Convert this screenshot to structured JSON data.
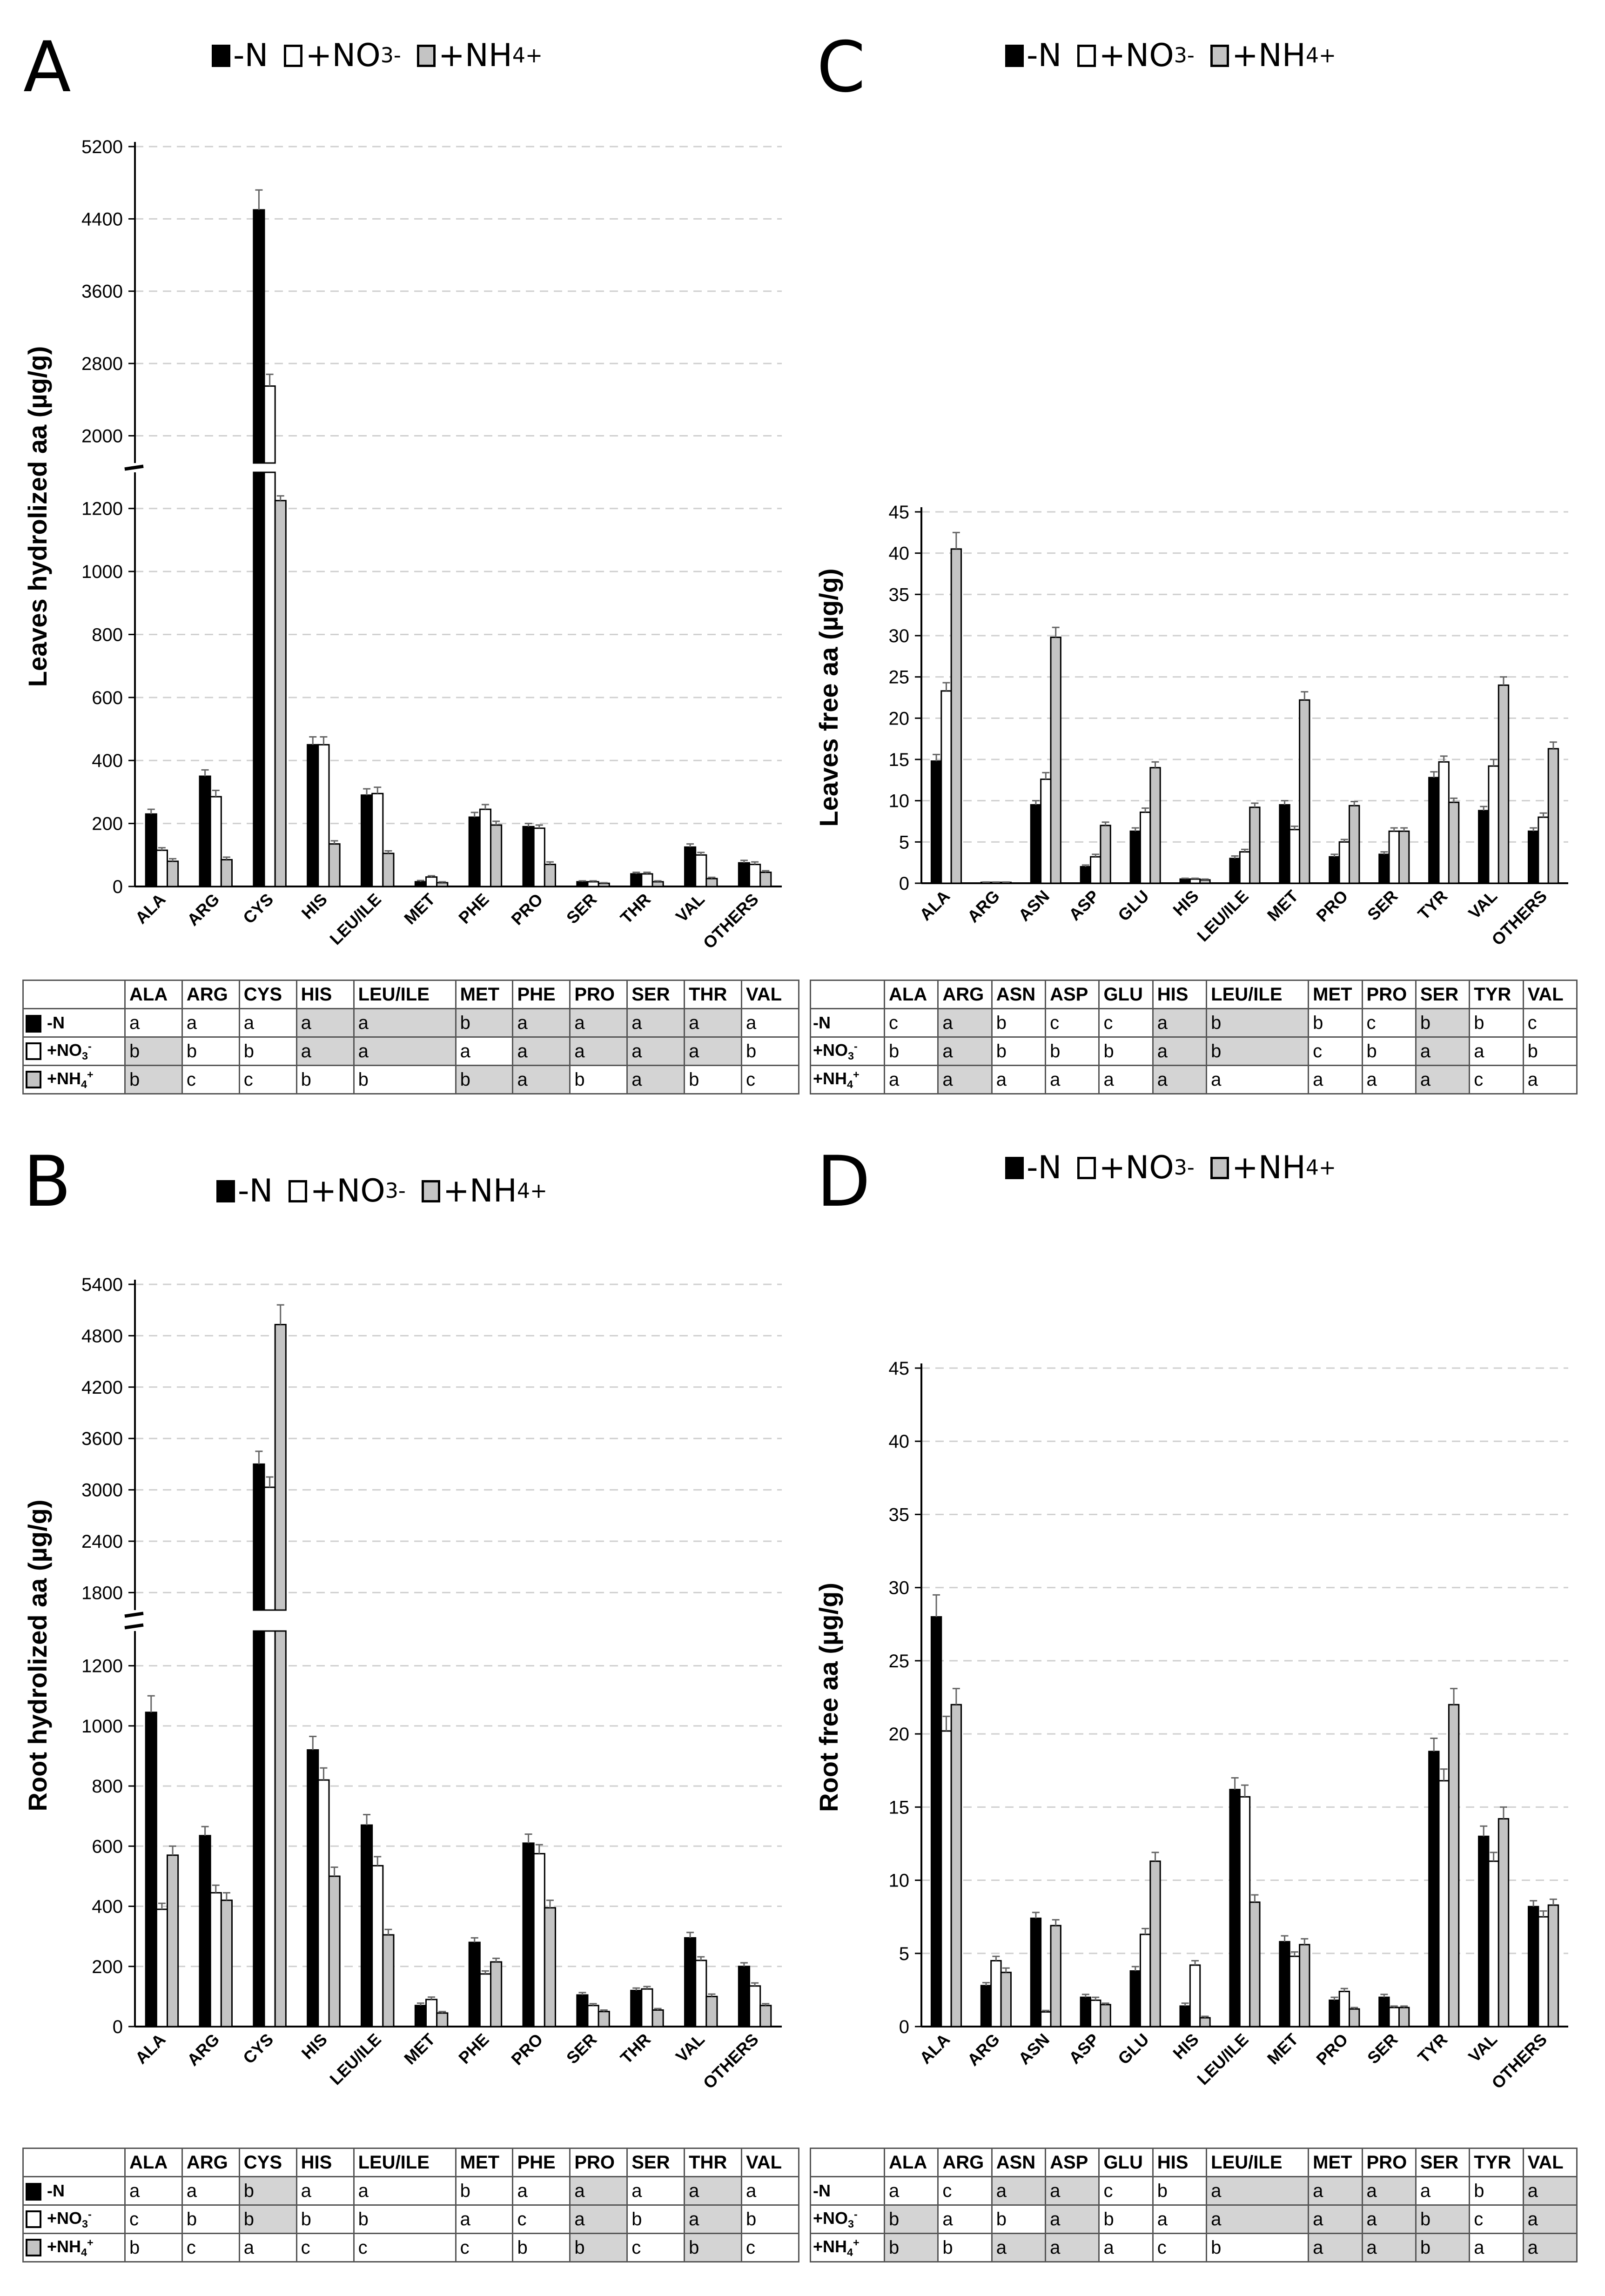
{
  "legend": {
    "minus_n": "-N",
    "no3_base": "+NO",
    "no3_sub": "3",
    "no3_sup": "-",
    "nh4_base": "+NH",
    "nh4_sub": "4",
    "nh4_sup": "+"
  },
  "colors": {
    "minus_n": "#000000",
    "no3": "#ffffff",
    "nh4": "#c4c4c4",
    "shade": "#d4d4d4"
  },
  "chart_data": [
    {
      "id": "A",
      "panel": "A",
      "type": "bar",
      "broken_axis": true,
      "ylabel": "Leaves hydrolized aa (µg/g)",
      "yticks_lower": [
        "0",
        "200",
        "400",
        "600",
        "800",
        "1000",
        "1200"
      ],
      "yticks_upper": [
        "2000",
        "2800",
        "3600",
        "4400",
        "5200"
      ],
      "ylim_lower": [
        0,
        1300
      ],
      "ylim_upper": [
        1750,
        5200
      ],
      "categories": [
        "ALA",
        "ARG",
        "CYS",
        "HIS",
        "LEU/ILE",
        "MET",
        "PHE",
        "PRO",
        "SER",
        "THR",
        "VAL",
        "OTHERS"
      ],
      "series": [
        {
          "name": "-N",
          "values": [
            230,
            350,
            4500,
            450,
            290,
            15,
            220,
            190,
            15,
            40,
            125,
            75
          ],
          "errors": [
            15,
            20,
            220,
            25,
            20,
            4,
            15,
            10,
            3,
            5,
            10,
            8
          ]
        },
        {
          "name": "+NO3-",
          "values": [
            115,
            285,
            2550,
            450,
            295,
            30,
            245,
            185,
            15,
            40,
            100,
            70
          ],
          "errors": [
            8,
            20,
            130,
            25,
            20,
            4,
            15,
            10,
            3,
            5,
            8,
            8
          ]
        },
        {
          "name": "+NH4+",
          "values": [
            80,
            85,
            1225,
            135,
            105,
            12,
            195,
            70,
            10,
            15,
            25,
            45
          ],
          "errors": [
            8,
            8,
            15,
            10,
            8,
            3,
            12,
            8,
            2,
            3,
            4,
            5
          ]
        }
      ],
      "table": {
        "headers": [
          "ALA",
          "ARG",
          "CYS",
          "HIS",
          "LEU/ILE",
          "MET",
          "PHE",
          "PRO",
          "SER",
          "THR",
          "VAL"
        ],
        "rows": [
          {
            "label": "-N",
            "cells": [
              "a",
              "a",
              "a",
              "a",
              "a",
              "b",
              "a",
              "a",
              "a",
              "a",
              "a"
            ],
            "shaded": [
              false,
              false,
              false,
              true,
              true,
              true,
              true,
              true,
              true,
              true,
              false
            ]
          },
          {
            "label": "+NO3-",
            "cells": [
              "b",
              "b",
              "b",
              "a",
              "a",
              "a",
              "a",
              "a",
              "a",
              "a",
              "b"
            ],
            "shaded": [
              true,
              false,
              false,
              true,
              true,
              false,
              true,
              true,
              true,
              true,
              false
            ]
          },
          {
            "label": "+NH4+",
            "cells": [
              "b",
              "c",
              "c",
              "b",
              "b",
              "b",
              "a",
              "b",
              "a",
              "b",
              "c"
            ],
            "shaded": [
              true,
              false,
              false,
              false,
              false,
              true,
              true,
              false,
              true,
              false,
              false
            ]
          }
        ]
      }
    },
    {
      "id": "B",
      "panel": "B",
      "type": "bar",
      "broken_axis": true,
      "ylabel": "Root hydrolized aa (µg/g)",
      "yticks_lower": [
        "0",
        "200",
        "400",
        "600",
        "800",
        "1000",
        "1200"
      ],
      "yticks_upper": [
        "1800",
        "2400",
        "3000",
        "3600",
        "4200",
        "4800",
        "5400"
      ],
      "ylim_lower": [
        0,
        1300
      ],
      "ylim_upper": [
        1650,
        5400
      ],
      "categories": [
        "ALA",
        "ARG",
        "CYS",
        "HIS",
        "LEU/ILE",
        "MET",
        "PHE",
        "PRO",
        "SER",
        "THR",
        "VAL",
        "OTHERS"
      ],
      "series": [
        {
          "name": "-N",
          "values": [
            1045,
            635,
            3300,
            920,
            670,
            70,
            280,
            610,
            105,
            120,
            295,
            200
          ],
          "errors": [
            55,
            30,
            150,
            45,
            35,
            8,
            15,
            30,
            8,
            8,
            18,
            12
          ]
        },
        {
          "name": "+NO3-",
          "values": [
            390,
            445,
            3030,
            820,
            535,
            90,
            175,
            575,
            70,
            125,
            220,
            135
          ],
          "errors": [
            20,
            25,
            120,
            40,
            30,
            8,
            10,
            30,
            6,
            8,
            12,
            10
          ]
        },
        {
          "name": "+NH4+",
          "values": [
            570,
            420,
            4930,
            500,
            305,
            45,
            215,
            395,
            50,
            55,
            100,
            70
          ],
          "errors": [
            30,
            25,
            230,
            30,
            18,
            5,
            12,
            25,
            5,
            5,
            8,
            6
          ]
        }
      ],
      "table": {
        "headers": [
          "ALA",
          "ARG",
          "CYS",
          "HIS",
          "LEU/ILE",
          "MET",
          "PHE",
          "PRO",
          "SER",
          "THR",
          "VAL"
        ],
        "rows": [
          {
            "label": "-N",
            "cells": [
              "a",
              "a",
              "b",
              "a",
              "a",
              "b",
              "a",
              "a",
              "a",
              "a",
              "a"
            ],
            "shaded": [
              false,
              false,
              true,
              false,
              false,
              false,
              false,
              true,
              false,
              true,
              false
            ]
          },
          {
            "label": "+NO3-",
            "cells": [
              "c",
              "b",
              "b",
              "b",
              "b",
              "a",
              "c",
              "a",
              "b",
              "a",
              "b"
            ],
            "shaded": [
              false,
              false,
              true,
              false,
              false,
              false,
              false,
              true,
              false,
              true,
              false
            ]
          },
          {
            "label": "+NH4+",
            "cells": [
              "b",
              "c",
              "a",
              "c",
              "c",
              "c",
              "b",
              "b",
              "c",
              "b",
              "c"
            ],
            "shaded": [
              false,
              false,
              false,
              false,
              false,
              false,
              false,
              true,
              false,
              true,
              false
            ]
          }
        ]
      }
    },
    {
      "id": "C",
      "panel": "C",
      "type": "bar",
      "broken_axis": false,
      "ylabel": "Leaves free aa (µg/g)",
      "yticks": [
        "0",
        "5",
        "10",
        "15",
        "20",
        "25",
        "30",
        "35",
        "40",
        "45"
      ],
      "ylim": [
        0,
        45
      ],
      "categories": [
        "ALA",
        "ARG",
        "ASN",
        "ASP",
        "GLU",
        "HIS",
        "LEU/ILE",
        "MET",
        "PRO",
        "SER",
        "TYR",
        "VAL",
        "OTHERS"
      ],
      "series": [
        {
          "name": "-N",
          "values": [
            14.8,
            0.1,
            9.5,
            2.0,
            6.3,
            0.5,
            3.0,
            9.5,
            3.2,
            3.5,
            12.8,
            8.8,
            6.3
          ],
          "errors": [
            0.8,
            0.05,
            0.5,
            0.2,
            0.4,
            0.1,
            0.3,
            0.5,
            0.3,
            0.3,
            0.7,
            0.5,
            0.4
          ]
        },
        {
          "name": "+NO3-",
          "values": [
            23.3,
            0.1,
            12.6,
            3.2,
            8.6,
            0.5,
            3.8,
            6.5,
            5.0,
            6.3,
            14.7,
            14.2,
            8.0
          ],
          "errors": [
            1.0,
            0.05,
            0.8,
            0.3,
            0.5,
            0.1,
            0.3,
            0.4,
            0.3,
            0.4,
            0.7,
            0.8,
            0.5
          ]
        },
        {
          "name": "+NH4+",
          "values": [
            40.5,
            0.1,
            29.8,
            7.0,
            14.0,
            0.4,
            9.2,
            22.2,
            9.4,
            6.3,
            9.8,
            24.0,
            16.3
          ],
          "errors": [
            2.0,
            0.05,
            1.2,
            0.4,
            0.7,
            0.1,
            0.5,
            1.0,
            0.5,
            0.4,
            0.5,
            1.0,
            0.8
          ]
        }
      ],
      "table": {
        "headers": [
          "ALA",
          "ARG",
          "ASN",
          "ASP",
          "GLU",
          "HIS",
          "LEU/ILE",
          "MET",
          "PRO",
          "SER",
          "TYR",
          "VAL"
        ],
        "rows": [
          {
            "label": "-N",
            "cells": [
              "c",
              "a",
              "b",
              "c",
              "c",
              "a",
              "b",
              "b",
              "c",
              "b",
              "b",
              "c"
            ],
            "shaded": [
              false,
              true,
              false,
              false,
              false,
              true,
              true,
              false,
              false,
              true,
              false,
              false
            ]
          },
          {
            "label": "+NO3-",
            "cells": [
              "b",
              "a",
              "b",
              "b",
              "b",
              "a",
              "b",
              "c",
              "b",
              "a",
              "a",
              "b"
            ],
            "shaded": [
              false,
              true,
              false,
              false,
              false,
              true,
              true,
              false,
              false,
              true,
              false,
              false
            ]
          },
          {
            "label": "+NH4+",
            "cells": [
              "a",
              "a",
              "a",
              "a",
              "a",
              "a",
              "a",
              "a",
              "a",
              "a",
              "c",
              "a"
            ],
            "shaded": [
              false,
              true,
              false,
              false,
              false,
              true,
              false,
              false,
              false,
              true,
              false,
              false
            ]
          }
        ]
      }
    },
    {
      "id": "D",
      "panel": "D",
      "type": "bar",
      "broken_axis": false,
      "ylabel": "Root free aa (µg/g)",
      "yticks": [
        "0",
        "5",
        "10",
        "15",
        "20",
        "25",
        "30",
        "35",
        "40",
        "45"
      ],
      "ylim": [
        0,
        45
      ],
      "categories": [
        "ALA",
        "ARG",
        "ASN",
        "ASP",
        "GLU",
        "HIS",
        "LEU/ILE",
        "MET",
        "PRO",
        "SER",
        "TYR",
        "VAL",
        "OTHERS"
      ],
      "series": [
        {
          "name": "-N",
          "values": [
            28.0,
            2.8,
            7.4,
            2.0,
            3.8,
            1.4,
            16.2,
            5.8,
            1.8,
            2.0,
            18.8,
            13.0,
            8.2
          ],
          "errors": [
            1.5,
            0.2,
            0.4,
            0.2,
            0.3,
            0.2,
            0.8,
            0.4,
            0.2,
            0.2,
            0.9,
            0.7,
            0.4
          ]
        },
        {
          "name": "+NO3-",
          "values": [
            20.2,
            4.5,
            1.0,
            1.8,
            6.3,
            4.2,
            15.7,
            4.8,
            2.4,
            1.3,
            16.8,
            11.3,
            7.5
          ],
          "errors": [
            1.0,
            0.3,
            0.1,
            0.2,
            0.4,
            0.3,
            0.8,
            0.3,
            0.2,
            0.1,
            0.8,
            0.6,
            0.4
          ]
        },
        {
          "name": "+NH4+",
          "values": [
            22.0,
            3.7,
            6.9,
            1.5,
            11.3,
            0.6,
            8.5,
            5.6,
            1.2,
            1.3,
            22.0,
            14.2,
            8.3
          ],
          "errors": [
            1.1,
            0.3,
            0.4,
            0.1,
            0.6,
            0.1,
            0.5,
            0.4,
            0.1,
            0.1,
            1.1,
            0.8,
            0.4
          ]
        }
      ],
      "table": {
        "headers": [
          "ALA",
          "ARG",
          "ASN",
          "ASP",
          "GLU",
          "HIS",
          "LEU/ILE",
          "MET",
          "PRO",
          "SER",
          "TYR",
          "VAL"
        ],
        "rows": [
          {
            "label": "-N",
            "cells": [
              "a",
              "c",
              "a",
              "a",
              "c",
              "b",
              "a",
              "a",
              "a",
              "a",
              "b",
              "a"
            ],
            "shaded": [
              false,
              false,
              true,
              true,
              false,
              false,
              true,
              true,
              true,
              false,
              false,
              true
            ]
          },
          {
            "label": "+NO3-",
            "cells": [
              "b",
              "a",
              "b",
              "a",
              "b",
              "a",
              "a",
              "a",
              "a",
              "b",
              "c",
              "a"
            ],
            "shaded": [
              true,
              false,
              false,
              true,
              false,
              false,
              true,
              true,
              true,
              true,
              false,
              true
            ]
          },
          {
            "label": "+NH4+",
            "cells": [
              "b",
              "b",
              "a",
              "a",
              "a",
              "c",
              "b",
              "a",
              "a",
              "b",
              "a",
              "a"
            ],
            "shaded": [
              true,
              false,
              true,
              true,
              false,
              false,
              false,
              true,
              true,
              true,
              false,
              true
            ]
          }
        ]
      }
    }
  ]
}
